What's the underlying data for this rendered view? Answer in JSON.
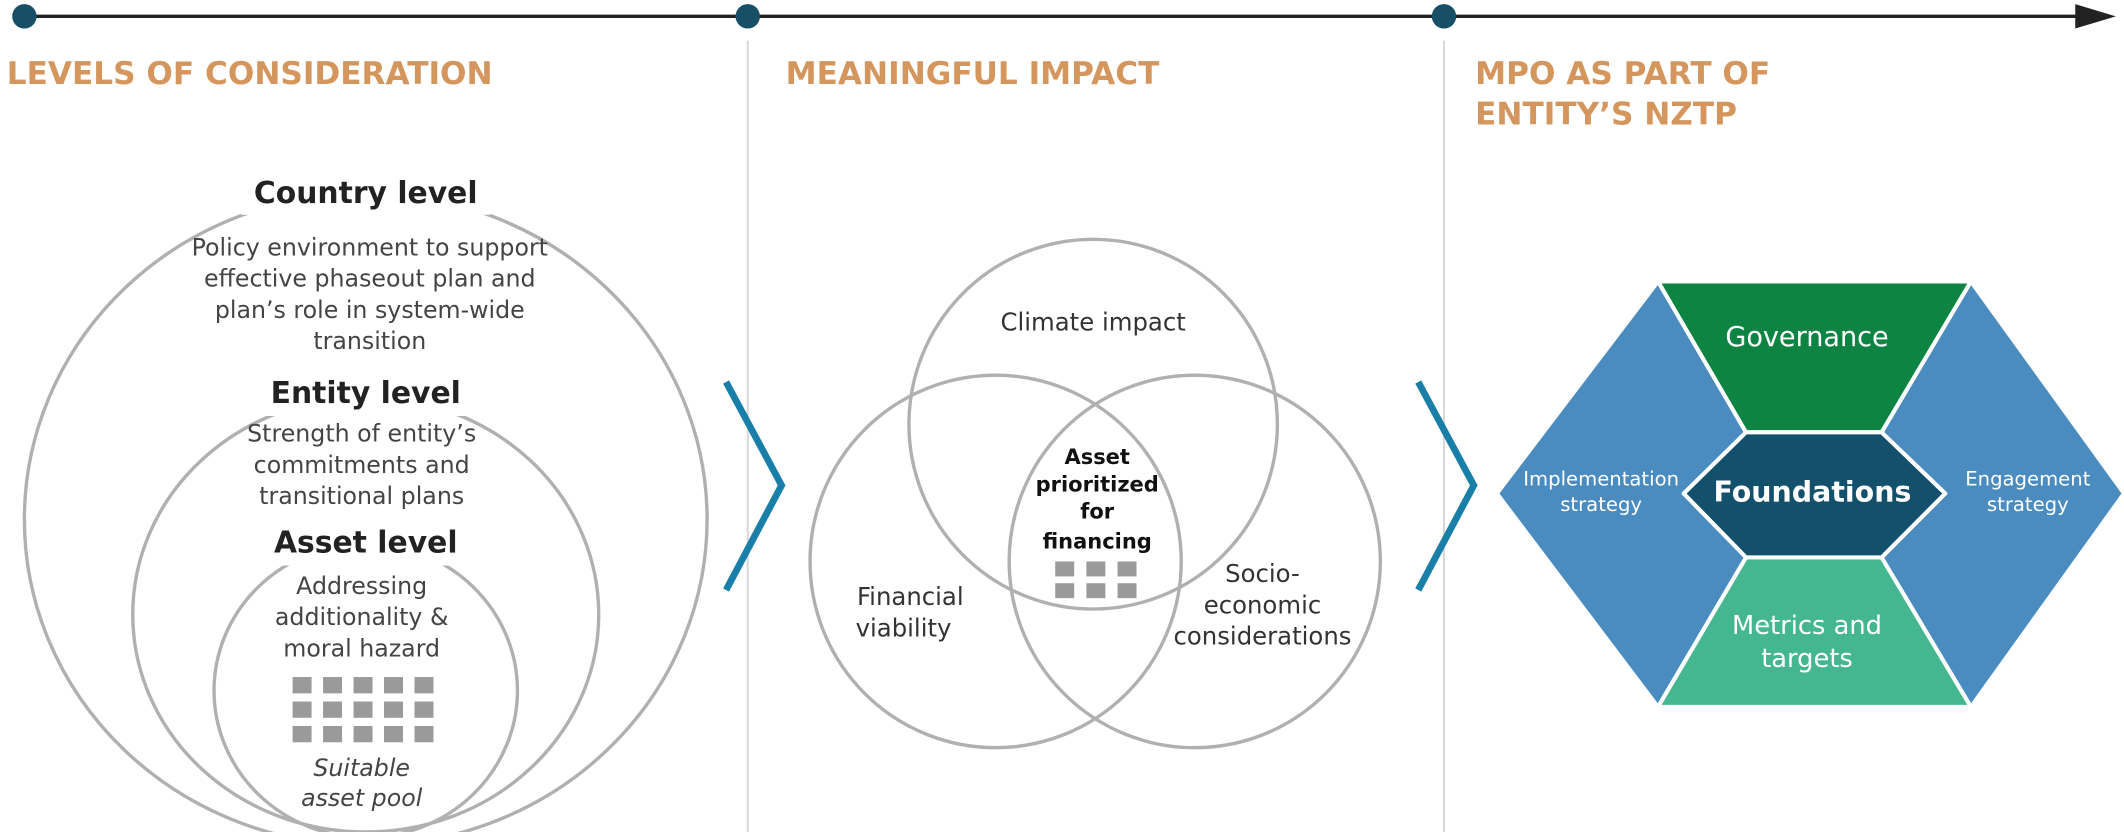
{
  "sections": [
    {
      "title": [
        "LEVELS OF CONSIDERATION"
      ],
      "levels": [
        {
          "name": "Country level",
          "description": [
            "Policy environment to support",
            "effective phaseout plan and",
            "plan’s role in system-wide",
            "transition"
          ]
        },
        {
          "name": "Entity level",
          "description": [
            "Strength of entity’s",
            "commitments and",
            "transitional plans"
          ]
        },
        {
          "name": "Asset level",
          "description": [
            "Addressing",
            "additionality &",
            "moral hazard"
          ]
        }
      ],
      "pool_label": [
        "Suitable",
        "asset pool"
      ]
    },
    {
      "title": [
        "MEANINGFUL IMPACT"
      ],
      "circles": [
        [
          "Climate impact"
        ],
        [
          "Financial",
          "viability"
        ],
        [
          "Socio-",
          "economic",
          "considerations"
        ]
      ],
      "center": [
        "Asset",
        "prioritized",
        "for",
        "financing"
      ]
    },
    {
      "title": [
        "MPO AS PART OF",
        "ENTITY’S NZTP"
      ],
      "top": [
        "Governance"
      ],
      "center": [
        "Foundations"
      ],
      "bottom": [
        "Metrics and",
        "targets"
      ],
      "left": [
        "Implementation",
        "strategy"
      ],
      "right": [
        "Engagement",
        "strategy"
      ]
    }
  ]
}
